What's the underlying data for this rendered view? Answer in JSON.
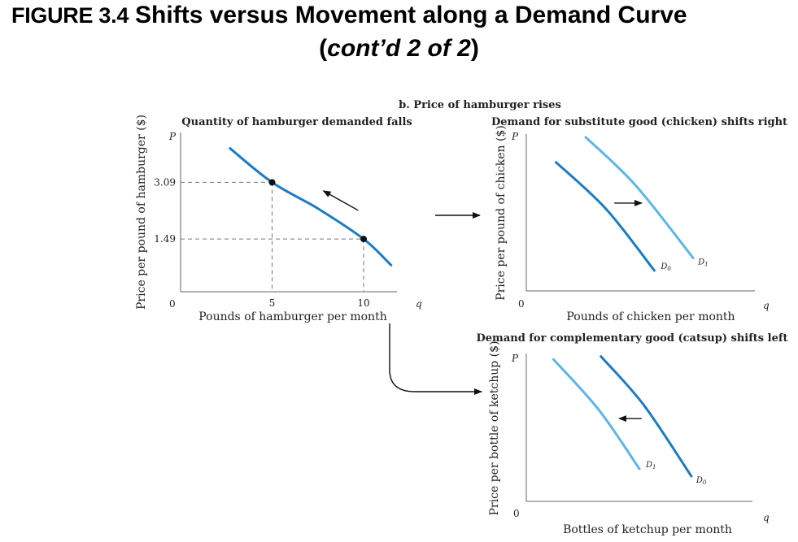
{
  "figure": {
    "label": "FIGURE 3.4",
    "title": "Shifts versus Movement along a Demand Curve",
    "title_cont_open": "(",
    "title_cont": "cont’d 2 of 2",
    "title_cont_close": ")",
    "panel_group_title": "b. Price of hamburger rises"
  },
  "colors": {
    "dark_curve": "#1a7cc6",
    "light_curve": "#5cb6e8",
    "axis": "#666666",
    "guide": "#777777",
    "arrow": "#111111"
  },
  "axis_symbols": {
    "price": "P",
    "quantity": "q",
    "origin": "0"
  },
  "chart_data": [
    {
      "id": "hamburger",
      "type": "line",
      "title": "Quantity of hamburger demanded falls",
      "xlabel": "Pounds of hamburger per month",
      "ylabel": "Price per pound of hamburger ($)",
      "xlim": [
        0,
        12
      ],
      "ylim": [
        0,
        4.5
      ],
      "xticks": [
        5,
        10
      ],
      "yticks": [
        3.09,
        1.49
      ],
      "grid": false,
      "series": [
        {
          "x": [
            2.7,
            5,
            7.5,
            10,
            11.5
          ],
          "y": [
            4.05,
            3.09,
            2.35,
            1.49,
            0.75
          ],
          "style": "dark"
        }
      ],
      "points": [
        {
          "x": 5,
          "y": 3.09
        },
        {
          "x": 10,
          "y": 1.49
        }
      ],
      "movement_arrow": {
        "from": [
          9.7,
          2.3
        ],
        "to": [
          7.8,
          2.85
        ]
      }
    },
    {
      "id": "chicken",
      "type": "line",
      "title": "Demand for substitute good (chicken) shifts right",
      "xlabel": "Pounds of chicken per month",
      "ylabel": "Price per pound of chicken ($)",
      "xlim": [
        0,
        10
      ],
      "ylim": [
        0,
        10
      ],
      "grid": false,
      "series": [
        {
          "name": "D0",
          "label_main": "D",
          "label_sub": "0",
          "x": [
            1.3,
            3.5,
            5.6
          ],
          "y": [
            8.2,
            5.2,
            1.3
          ],
          "style": "dark"
        },
        {
          "name": "D1",
          "label_main": "D",
          "label_sub": "1",
          "x": [
            2.6,
            4.8,
            7.3
          ],
          "y": [
            9.8,
            6.7,
            2.1
          ],
          "style": "light"
        }
      ],
      "shift_arrow": {
        "from": [
          3.85,
          5.6
        ],
        "to": [
          5.05,
          5.6
        ]
      }
    },
    {
      "id": "ketchup",
      "type": "line",
      "title": "Demand for complementary good (catsup) shifts left",
      "xlabel": "Bottles of ketchup per month",
      "ylabel": "Price per bottle of ketchup ($)",
      "xlim": [
        0,
        10
      ],
      "ylim": [
        0,
        10
      ],
      "grid": false,
      "series": [
        {
          "name": "D1",
          "label_main": "D",
          "label_sub": "1",
          "x": [
            1.2,
            3.2,
            5.0
          ],
          "y": [
            9.6,
            6.2,
            2.2
          ],
          "style": "light"
        },
        {
          "name": "D0",
          "label_main": "D",
          "label_sub": "0",
          "x": [
            3.3,
            5.2,
            7.3
          ],
          "y": [
            9.8,
            6.5,
            1.7
          ],
          "style": "dark"
        }
      ],
      "shift_arrow": {
        "from": [
          5.1,
          5.6
        ],
        "to": [
          4.1,
          5.6
        ]
      }
    }
  ]
}
